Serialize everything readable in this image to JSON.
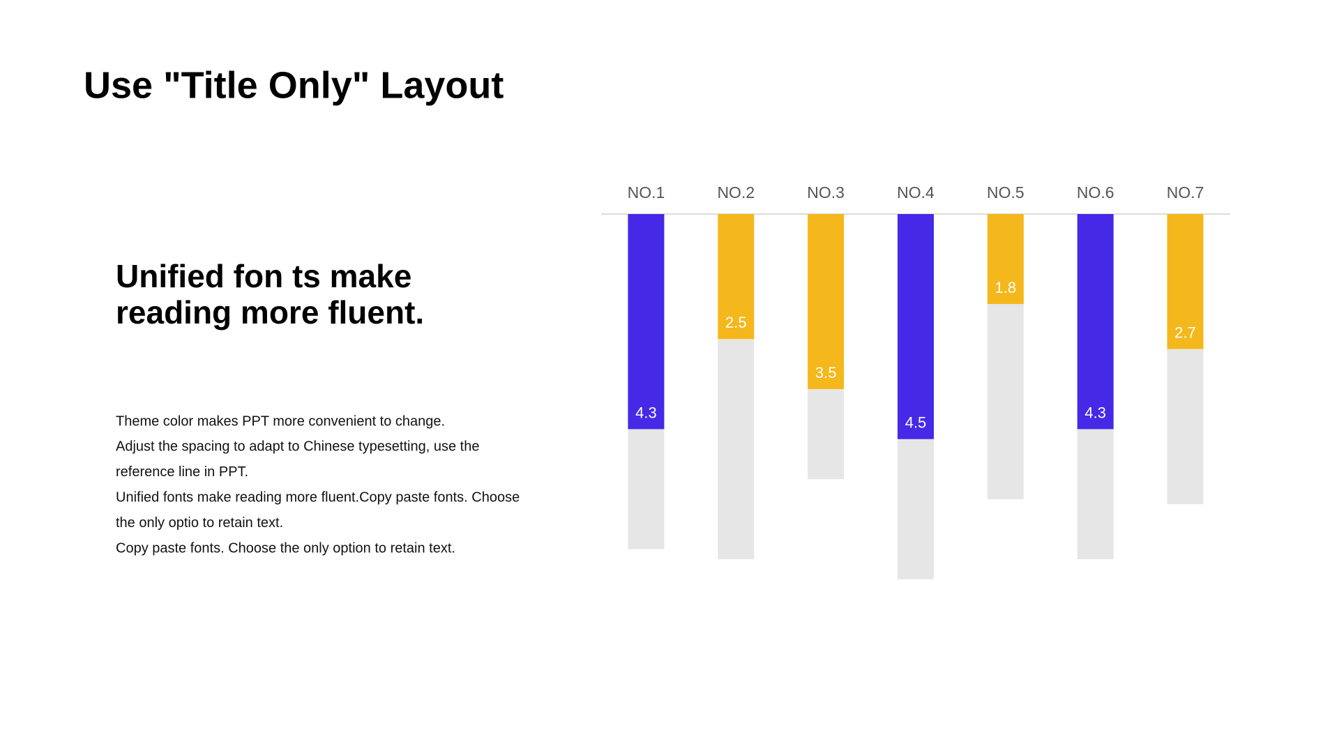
{
  "title": "Use \"Title Only\" Layout",
  "heading": [
    "Unified fon ts make",
    "reading more fluent."
  ],
  "body": [
    "Theme color makes PPT more convenient to change.",
    "Adjust the spacing to adapt to Chinese typesetting, use the",
    "reference line in PPT.",
    "Unified fonts make reading more fluent.Copy paste fonts. Choose",
    "the only optio to retain text.",
    "Copy paste fonts. Choose the only option to retain text."
  ],
  "chart_data": {
    "type": "bar",
    "categories": [
      "NO.1",
      "NO.2",
      "NO.3",
      "NO.4",
      "NO.5",
      "NO.6",
      "NO.7"
    ],
    "series": [
      {
        "values": [
          4.3,
          2.5,
          3.5,
          4.5,
          1.8,
          4.3,
          2.7
        ],
        "colors": [
          "#4529e6",
          "#f4b81c",
          "#f4b81c",
          "#4529e6",
          "#f4b81c",
          "#4529e6",
          "#f4b81c"
        ]
      },
      {
        "values": [
          2.4,
          4.4,
          1.8,
          2.8,
          3.9,
          2.6,
          3.1
        ],
        "color": "#e6e6e6"
      }
    ],
    "ylim": [
      0,
      8
    ]
  }
}
